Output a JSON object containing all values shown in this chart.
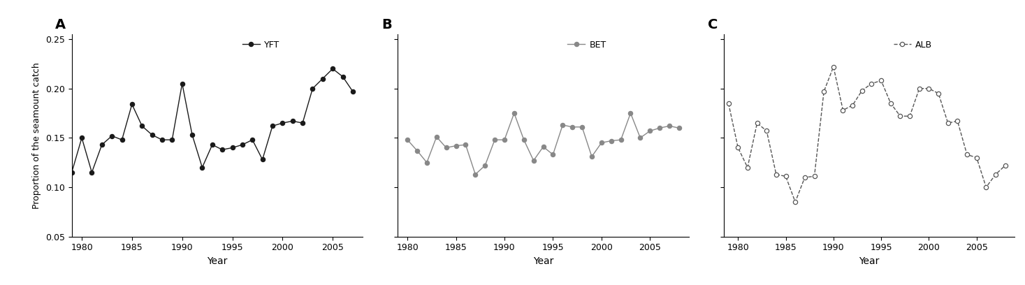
{
  "YFT": {
    "years": [
      1979,
      1980,
      1981,
      1982,
      1983,
      1984,
      1985,
      1986,
      1987,
      1988,
      1989,
      1990,
      1991,
      1992,
      1993,
      1994,
      1995,
      1996,
      1997,
      1998,
      1999,
      2000,
      2001,
      2002,
      2003,
      2004,
      2005,
      2006,
      2007
    ],
    "values": [
      0.115,
      0.15,
      0.115,
      0.143,
      0.152,
      0.148,
      0.184,
      0.162,
      0.153,
      0.148,
      0.148,
      0.205,
      0.153,
      0.12,
      0.143,
      0.138,
      0.14,
      0.143,
      0.148,
      0.128,
      0.162,
      0.165,
      0.167,
      0.165,
      0.2,
      0.21,
      0.22,
      0.212,
      0.197
    ],
    "color": "#1a1a1a",
    "linestyle": "-",
    "marker": "o",
    "marker_filled": true,
    "label": "YFT",
    "xlim": [
      1979,
      2008
    ],
    "xticks": [
      1980,
      1985,
      1990,
      1995,
      2000,
      2005
    ]
  },
  "BET": {
    "years": [
      1980,
      1981,
      1982,
      1983,
      1984,
      1985,
      1986,
      1987,
      1988,
      1989,
      1990,
      1991,
      1992,
      1993,
      1994,
      1995,
      1996,
      1997,
      1998,
      1999,
      2000,
      2001,
      2002,
      2003,
      2004,
      2005,
      2006,
      2007,
      2008
    ],
    "values": [
      0.148,
      0.137,
      0.125,
      0.151,
      0.14,
      0.142,
      0.143,
      0.113,
      0.122,
      0.148,
      0.148,
      0.175,
      0.148,
      0.127,
      0.141,
      0.133,
      0.163,
      0.161,
      0.161,
      0.131,
      0.145,
      0.147,
      0.148,
      0.175,
      0.15,
      0.157,
      0.16,
      0.162,
      0.16
    ],
    "color": "#888888",
    "linestyle": "-",
    "marker": "o",
    "marker_filled": true,
    "label": "BET",
    "xlim": [
      1979,
      2009
    ],
    "xticks": [
      1980,
      1985,
      1990,
      1995,
      2000,
      2005
    ]
  },
  "ALB": {
    "years": [
      1979,
      1980,
      1981,
      1982,
      1983,
      1984,
      1985,
      1986,
      1987,
      1988,
      1989,
      1990,
      1991,
      1992,
      1993,
      1994,
      1995,
      1996,
      1997,
      1998,
      1999,
      2000,
      2001,
      2002,
      2003,
      2004,
      2005,
      2006,
      2007,
      2008
    ],
    "values": [
      0.185,
      0.14,
      0.12,
      0.165,
      0.157,
      0.113,
      0.111,
      0.085,
      0.11,
      0.111,
      0.197,
      0.222,
      0.178,
      0.183,
      0.198,
      0.205,
      0.208,
      0.185,
      0.172,
      0.172,
      0.2,
      0.2,
      0.195,
      0.165,
      0.167,
      0.133,
      0.13,
      0.1,
      0.113,
      0.122
    ],
    "color": "#555555",
    "linestyle": "--",
    "marker": "o",
    "marker_filled": false,
    "label": "ALB",
    "xlim": [
      1978.5,
      2009
    ],
    "xticks": [
      1980,
      1985,
      1990,
      1995,
      2000,
      2005
    ]
  },
  "ylim": [
    0.05,
    0.255
  ],
  "yticks": [
    0.05,
    0.1,
    0.15,
    0.2,
    0.25
  ],
  "ylabel": "Proportion of the seamount catch",
  "xlabel": "Year",
  "panel_labels": [
    "A",
    "B",
    "C"
  ],
  "background_color": "#ffffff"
}
